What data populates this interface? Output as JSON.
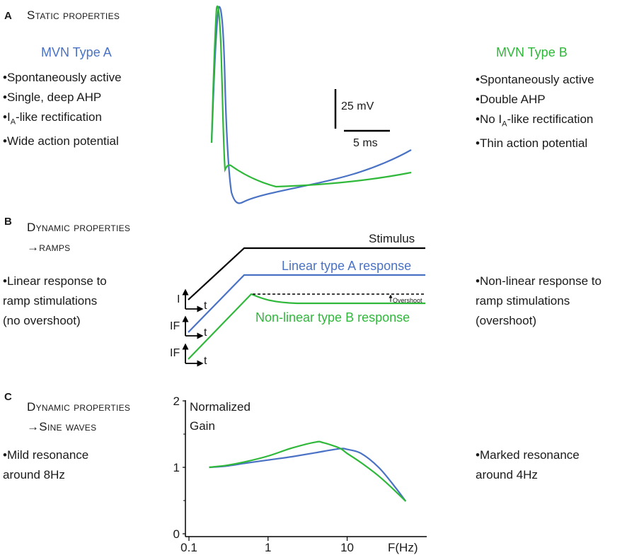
{
  "panel_a": {
    "letter": "A",
    "title": "Static properties",
    "type_a": {
      "name": "MVN Type A",
      "bullets": [
        "•Spontaneously active",
        "•Single, deep AHP",
        "-like rectification",
        "•Wide action potential"
      ],
      "ia_prefix": "•I",
      "ia_sub": "A"
    },
    "type_b": {
      "name": "MVN Type B",
      "bullets": [
        "•Spontaneously active",
        "•Double AHP",
        "-like rectification",
        "•Thin action potential"
      ],
      "ia_prefix": "•No I",
      "ia_sub": "A"
    },
    "scale_bar": {
      "voltage": "25 mV",
      "time": "5 ms"
    }
  },
  "panel_b": {
    "letter": "B",
    "title_line1": "Dynamic properties",
    "title_line2": "→ramps",
    "left_text": [
      "•Linear response to",
      "ramp stimulations",
      "(no overshoot)"
    ],
    "right_text": [
      "•Non-linear response to",
      "ramp stimulations",
      "(overshoot)"
    ],
    "stimulus_label": "Stimulus",
    "linear_label": "Linear type A response",
    "nonlinear_label": "Non-linear type B response",
    "overshoot_label": "Overshoot",
    "axes": [
      {
        "y": "I",
        "x": "t"
      },
      {
        "y": "IF",
        "x": "t"
      },
      {
        "y": "IF",
        "x": "t"
      }
    ]
  },
  "panel_c": {
    "letter": "C",
    "title_line1": "Dynamic properties",
    "title_line2": "→Sine waves",
    "left_text": [
      "•Mild resonance",
      "around 8Hz"
    ],
    "right_text": [
      "•Marked resonance",
      "around 4Hz"
    ],
    "ylabel_line1": "Normalized",
    "ylabel_line2": "Gain",
    "xlabel": "F(Hz)"
  },
  "colors": {
    "type_a": "#4a72c4",
    "type_b": "#2fb83a",
    "stimulus": "#000000"
  },
  "chart_data": {
    "type": "line",
    "x_scale": "log",
    "xlim": [
      0.1,
      70
    ],
    "ylim": [
      0,
      2
    ],
    "x_ticks": [
      0.1,
      1,
      10
    ],
    "x_tick_labels": [
      "0.1",
      "1",
      "10"
    ],
    "y_ticks": [
      0,
      1,
      2
    ],
    "y_tick_labels": [
      "0",
      "1",
      "2"
    ],
    "series": [
      {
        "color": "#4a72c4",
        "points": [
          [
            0.18,
            1.0
          ],
          [
            0.3,
            1.02
          ],
          [
            0.5,
            1.06
          ],
          [
            1,
            1.11
          ],
          [
            2,
            1.16
          ],
          [
            4,
            1.22
          ],
          [
            8,
            1.28
          ],
          [
            10,
            1.27
          ],
          [
            15,
            1.21
          ],
          [
            25,
            1.0
          ],
          [
            40,
            0.71
          ],
          [
            55,
            0.49
          ]
        ]
      },
      {
        "color": "#2fb83a",
        "points": [
          [
            0.18,
            1.0
          ],
          [
            0.3,
            1.03
          ],
          [
            0.5,
            1.08
          ],
          [
            1,
            1.17
          ],
          [
            2,
            1.29
          ],
          [
            4,
            1.38
          ],
          [
            5,
            1.37
          ],
          [
            8,
            1.29
          ],
          [
            10,
            1.21
          ],
          [
            15,
            1.07
          ],
          [
            25,
            0.87
          ],
          [
            40,
            0.65
          ],
          [
            55,
            0.49
          ]
        ]
      }
    ]
  }
}
